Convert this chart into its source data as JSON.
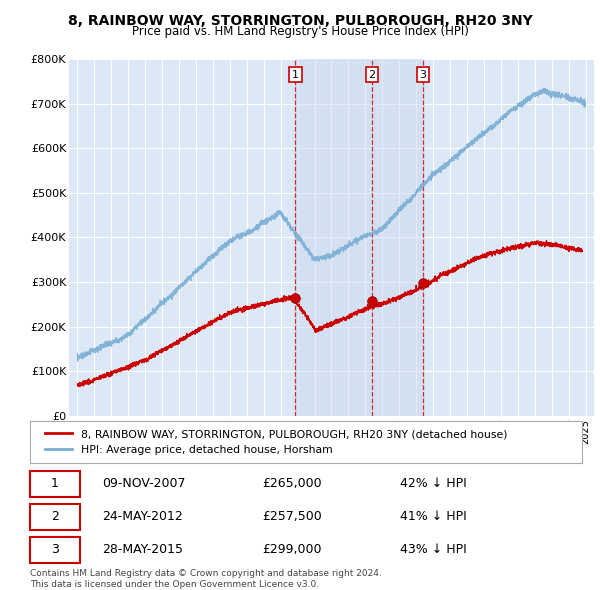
{
  "title": "8, RAINBOW WAY, STORRINGTON, PULBOROUGH, RH20 3NY",
  "subtitle": "Price paid vs. HM Land Registry's House Price Index (HPI)",
  "legend_red": "8, RAINBOW WAY, STORRINGTON, PULBOROUGH, RH20 3NY (detached house)",
  "legend_blue": "HPI: Average price, detached house, Horsham",
  "transactions": [
    {
      "label": "1",
      "date": "09-NOV-2007",
      "x_year": 2007.86,
      "price": 265000,
      "pct": "42%"
    },
    {
      "label": "2",
      "date": "24-MAY-2012",
      "x_year": 2012.39,
      "price": 257500,
      "pct": "41%"
    },
    {
      "label": "3",
      "date": "28-MAY-2015",
      "x_year": 2015.4,
      "price": 299000,
      "pct": "43%"
    }
  ],
  "table_rows": [
    [
      "1",
      "09-NOV-2007",
      "£265,000",
      "42% ↓ HPI"
    ],
    [
      "2",
      "24-MAY-2012",
      "£257,500",
      "41% ↓ HPI"
    ],
    [
      "3",
      "28-MAY-2015",
      "£299,000",
      "43% ↓ HPI"
    ]
  ],
  "footer": "Contains HM Land Registry data © Crown copyright and database right 2024.\nThis data is licensed under the Open Government Licence v3.0.",
  "ylim": [
    0,
    800000
  ],
  "yticks": [
    0,
    100000,
    200000,
    300000,
    400000,
    500000,
    600000,
    700000,
    800000
  ],
  "xlim_start": 1994.5,
  "xlim_end": 2025.5,
  "plot_bg": "#dce8f5",
  "shade_color": "#ccd9f0",
  "red_color": "#cc0000",
  "blue_color": "#7aadd4",
  "grid_color": "#ffffff"
}
